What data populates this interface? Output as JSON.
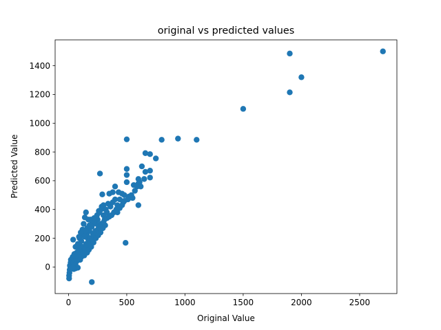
{
  "chart_data": {
    "type": "scatter",
    "title": "original vs predicted values",
    "xlabel": "Original Value",
    "ylabel": "Predicted Value",
    "xlim": [
      -115,
      2820
    ],
    "ylim": [
      -185,
      1580
    ],
    "xticks": [
      0,
      500,
      1000,
      1500,
      2000,
      2500
    ],
    "yticks": [
      0,
      200,
      400,
      600,
      800,
      1000,
      1200,
      1400
    ],
    "grid": false,
    "legend": "none",
    "marker_color": "#1f77b4",
    "series": [
      {
        "points": [
          [
            2700,
            1500
          ],
          [
            1900,
            1485
          ],
          [
            2000,
            1320
          ],
          [
            1900,
            1215
          ],
          [
            1500,
            1100
          ],
          [
            940,
            893
          ],
          [
            800,
            885
          ],
          [
            1100,
            885
          ],
          [
            500,
            888
          ],
          [
            660,
            792
          ],
          [
            700,
            785
          ],
          [
            750,
            755
          ],
          [
            630,
            700
          ],
          [
            500,
            682
          ],
          [
            700,
            670
          ],
          [
            660,
            662
          ],
          [
            600,
            612
          ],
          [
            700,
            622
          ],
          [
            650,
            612
          ],
          [
            500,
            640
          ],
          [
            270,
            650
          ],
          [
            600,
            580
          ],
          [
            620,
            560
          ],
          [
            560,
            570
          ],
          [
            500,
            590
          ],
          [
            600,
            430
          ],
          [
            400,
            560
          ],
          [
            430,
            520
          ],
          [
            350,
            510
          ],
          [
            290,
            505
          ],
          [
            380,
            520
          ],
          [
            460,
            510
          ],
          [
            520,
            490
          ],
          [
            550,
            480
          ],
          [
            480,
            500
          ],
          [
            440,
            470
          ],
          [
            470,
            450
          ],
          [
            400,
            470
          ],
          [
            420,
            430
          ],
          [
            380,
            450
          ],
          [
            360,
            420
          ],
          [
            340,
            440
          ],
          [
            320,
            400
          ],
          [
            300,
            430
          ],
          [
            330,
            380
          ],
          [
            280,
            400
          ],
          [
            300,
            360
          ],
          [
            260,
            390
          ],
          [
            250,
            330
          ],
          [
            240,
            300
          ],
          [
            220,
            310
          ],
          [
            200,
            280
          ],
          [
            190,
            330
          ],
          [
            180,
            250
          ],
          [
            150,
            380
          ],
          [
            140,
            345
          ],
          [
            130,
            300
          ],
          [
            160,
            220
          ],
          [
            170,
            190
          ],
          [
            150,
            160
          ],
          [
            140,
            210
          ],
          [
            120,
            230
          ],
          [
            110,
            180
          ],
          [
            100,
            150
          ],
          [
            95,
            200
          ],
          [
            90,
            120
          ],
          [
            80,
            160
          ],
          [
            70,
            100
          ],
          [
            60,
            140
          ],
          [
            50,
            90
          ],
          [
            40,
            190
          ],
          [
            45,
            60
          ],
          [
            35,
            70
          ],
          [
            30,
            40
          ],
          [
            25,
            20
          ],
          [
            20,
            50
          ],
          [
            15,
            0
          ],
          [
            10,
            -20
          ],
          [
            8,
            -40
          ],
          [
            5,
            -60
          ],
          [
            5,
            -80
          ],
          [
            12,
            10
          ],
          [
            18,
            30
          ],
          [
            22,
            -10
          ],
          [
            30,
            10
          ],
          [
            40,
            30
          ],
          [
            55,
            40
          ],
          [
            65,
            60
          ],
          [
            75,
            80
          ],
          [
            85,
            110
          ],
          [
            100,
            90
          ],
          [
            110,
            130
          ],
          [
            120,
            110
          ],
          [
            130,
            140
          ],
          [
            140,
            120
          ],
          [
            150,
            130
          ],
          [
            160,
            150
          ],
          [
            180,
            160
          ],
          [
            190,
            200
          ],
          [
            200,
            190
          ],
          [
            210,
            230
          ],
          [
            220,
            210
          ],
          [
            230,
            250
          ],
          [
            250,
            260
          ],
          [
            260,
            280
          ],
          [
            270,
            270
          ],
          [
            280,
            300
          ],
          [
            300,
            310
          ],
          [
            310,
            330
          ],
          [
            330,
            340
          ],
          [
            350,
            350
          ],
          [
            370,
            360
          ],
          [
            390,
            380
          ],
          [
            410,
            400
          ],
          [
            420,
            380
          ],
          [
            440,
            410
          ],
          [
            460,
            430
          ],
          [
            480,
            460
          ],
          [
            510,
            470
          ],
          [
            540,
            500
          ],
          [
            570,
            530
          ],
          [
            590,
            560
          ],
          [
            610,
            590
          ],
          [
            200,
            -105
          ],
          [
            490,
            168
          ],
          [
            80,
            60
          ],
          [
            70,
            40
          ],
          [
            60,
            20
          ],
          [
            50,
            10
          ],
          [
            90,
            70
          ],
          [
            100,
            50
          ],
          [
            110,
            70
          ],
          [
            125,
            90
          ],
          [
            135,
            80
          ],
          [
            60,
            -10
          ],
          [
            80,
            -5
          ],
          [
            45,
            -15
          ],
          [
            35,
            -5
          ],
          [
            160,
            100
          ],
          [
            175,
            120
          ],
          [
            195,
            140
          ],
          [
            215,
            170
          ],
          [
            235,
            200
          ],
          [
            255,
            220
          ],
          [
            275,
            240
          ],
          [
            295,
            270
          ],
          [
            315,
            290
          ],
          [
            170,
            330
          ],
          [
            200,
            320
          ],
          [
            220,
            340
          ],
          [
            245,
            360
          ],
          [
            265,
            380
          ],
          [
            285,
            420
          ],
          [
            180,
            290
          ],
          [
            160,
            270
          ],
          [
            145,
            250
          ],
          [
            120,
            260
          ],
          [
            105,
            240
          ],
          [
            90,
            210
          ]
        ]
      }
    ]
  }
}
